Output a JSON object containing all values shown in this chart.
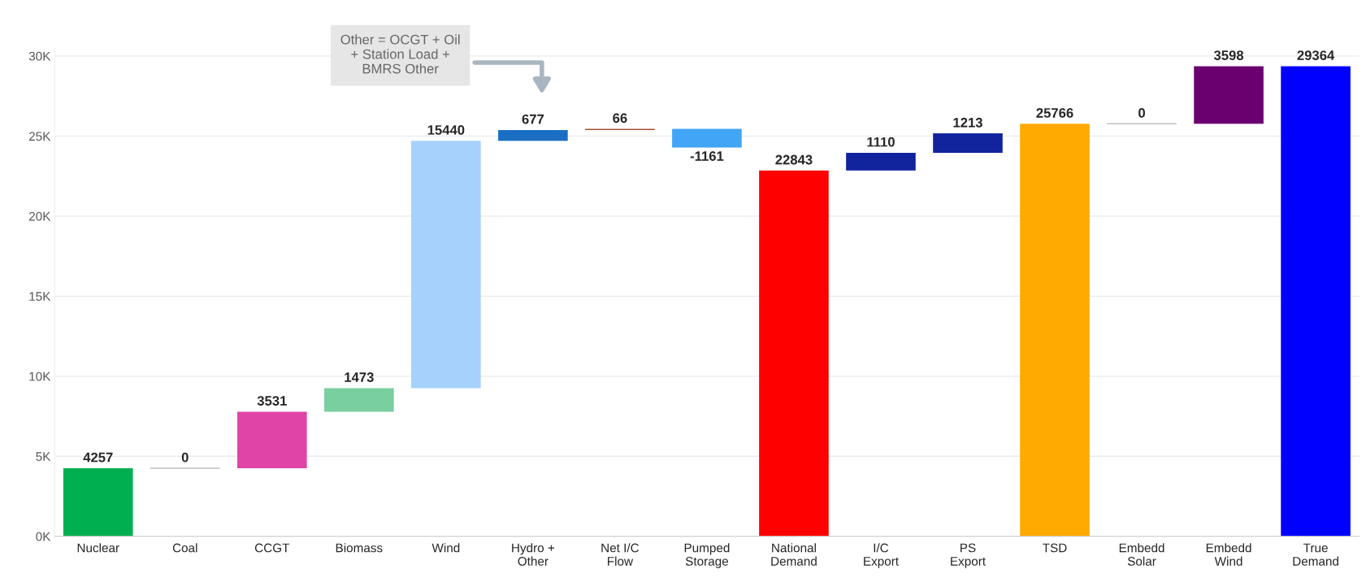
{
  "chart_data": {
    "type": "bar",
    "categories": [
      "Nuclear",
      "Coal",
      "CCGT",
      "Biomass",
      "Wind",
      "Hydro + Other",
      "Net I/C Flow",
      "Pumped Storage",
      "National Demand",
      "I/C Export",
      "PS Export",
      "TSD",
      "Embedd Solar",
      "Embedd Wind",
      "True Demand"
    ],
    "values": [
      4257,
      0,
      3531,
      1473,
      15440,
      677,
      66,
      -1161,
      22843,
      1110,
      1213,
      25766,
      0,
      3598,
      29364
    ],
    "base": [
      0,
      4257,
      4257,
      7788,
      9261,
      24701,
      25378,
      25444,
      0,
      22843,
      23953,
      0,
      25766,
      25766,
      0
    ],
    "colors": [
      "#00b050",
      "#bfbfbf",
      "#e044a7",
      "#7acfa0",
      "#a6d1fd",
      "#1a6fc4",
      "#a0522d",
      "#42a5f5",
      "#ff0000",
      "#12239e",
      "#12239e",
      "#ffaa00",
      "#bfbfbf",
      "#6a006f",
      "#0000ff"
    ],
    "data_labels": true,
    "ylim": [
      0,
      30500
    ],
    "yticks": [
      {
        "value": 0,
        "label": "0K"
      },
      {
        "value": 5000,
        "label": "5K"
      },
      {
        "value": 10000,
        "label": "10K"
      },
      {
        "value": 15000,
        "label": "15K"
      },
      {
        "value": 20000,
        "label": "20K"
      },
      {
        "value": 25000,
        "label": "25K"
      },
      {
        "value": 30000,
        "label": "30K"
      }
    ],
    "grid": "y",
    "annotations": [
      "Other = OCGT + Oil + Station Load + BMRS Other"
    ]
  }
}
